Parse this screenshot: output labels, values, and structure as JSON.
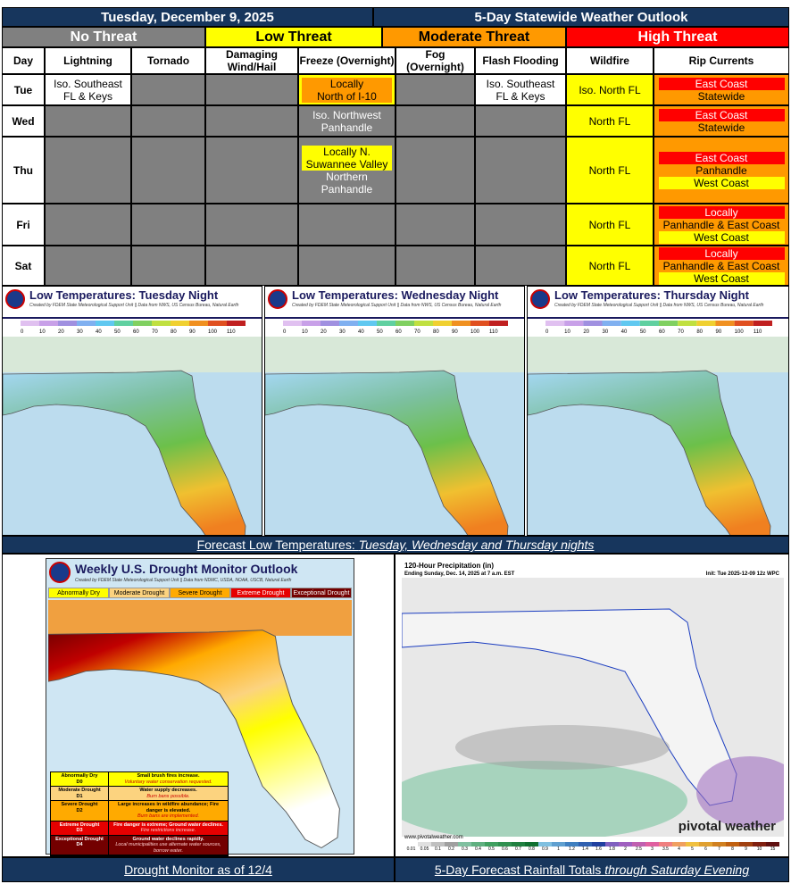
{
  "header": {
    "date": "Tuesday, December 9, 2025",
    "title": "5-Day Statewide Weather Outlook"
  },
  "legend": [
    {
      "text": "No Threat",
      "color": "#808080"
    },
    {
      "text": "Low Threat",
      "color": "#ffff00"
    },
    {
      "text": "Moderate Threat",
      "color": "#ff9900"
    },
    {
      "text": "High Threat",
      "color": "#ff0000"
    }
  ],
  "table": {
    "columns": [
      "Day",
      "Lightning",
      "Tornado",
      "Damaging Wind/Hail",
      "Freeze (Overnight)",
      "Fog (Overnight)",
      "Flash Flooding",
      "Wildfire",
      "Rip Currents"
    ],
    "rows": [
      {
        "day": "Tue",
        "cells": [
          {
            "bg": "#ffffff",
            "lines": [
              {
                "text": "Iso. Southeast FL & Keys"
              }
            ]
          },
          {
            "bg": "#808080",
            "lines": []
          },
          {
            "bg": "#808080",
            "lines": []
          },
          {
            "bg": "#ffff00",
            "lines": [
              {
                "text": "Locally",
                "color": "#ff9900"
              },
              {
                "text": "North of I-10",
                "color": "#ff9900"
              }
            ]
          },
          {
            "bg": "#808080",
            "lines": []
          },
          {
            "bg": "#ffffff",
            "lines": [
              {
                "text": "Iso. Southeast FL & Keys"
              }
            ]
          },
          {
            "bg": "#ffff00",
            "lines": [
              {
                "text": "Iso. North FL"
              }
            ]
          },
          {
            "bg": "#ff9900",
            "lines": [
              {
                "text": "East Coast",
                "color": "#ff0000"
              },
              {
                "text": "Statewide"
              }
            ]
          }
        ]
      },
      {
        "day": "Wed",
        "cells": [
          {
            "bg": "#808080",
            "lines": []
          },
          {
            "bg": "#808080",
            "lines": []
          },
          {
            "bg": "#808080",
            "lines": []
          },
          {
            "bg": "#808080",
            "lines": [
              {
                "text": "Iso. Northwest Panhandle"
              }
            ]
          },
          {
            "bg": "#808080",
            "lines": []
          },
          {
            "bg": "#808080",
            "lines": []
          },
          {
            "bg": "#ffff00",
            "lines": [
              {
                "text": "North FL"
              }
            ]
          },
          {
            "bg": "#ff9900",
            "lines": [
              {
                "text": "East Coast",
                "color": "#ff0000"
              },
              {
                "text": "Statewide"
              }
            ]
          }
        ]
      },
      {
        "day": "Thu",
        "cells": [
          {
            "bg": "#808080",
            "lines": []
          },
          {
            "bg": "#808080",
            "lines": []
          },
          {
            "bg": "#808080",
            "lines": []
          },
          {
            "bg": "#808080",
            "lines": [
              {
                "text": "Locally N. Suwannee Valley",
                "color": "#ffff00"
              },
              {
                "text": "Northern Panhandle"
              }
            ]
          },
          {
            "bg": "#808080",
            "lines": []
          },
          {
            "bg": "#808080",
            "lines": []
          },
          {
            "bg": "#ffff00",
            "lines": [
              {
                "text": "North FL"
              }
            ]
          },
          {
            "bg": "#ff9900",
            "lines": [
              {
                "text": "East Coast",
                "color": "#ff0000"
              },
              {
                "text": "Panhandle"
              },
              {
                "text": "West Coast",
                "color": "#ffff00"
              }
            ]
          }
        ]
      },
      {
        "day": "Fri",
        "cells": [
          {
            "bg": "#808080",
            "lines": []
          },
          {
            "bg": "#808080",
            "lines": []
          },
          {
            "bg": "#808080",
            "lines": []
          },
          {
            "bg": "#808080",
            "lines": []
          },
          {
            "bg": "#808080",
            "lines": []
          },
          {
            "bg": "#808080",
            "lines": []
          },
          {
            "bg": "#ffff00",
            "lines": [
              {
                "text": "North FL"
              }
            ]
          },
          {
            "bg": "#ff9900",
            "lines": [
              {
                "text": "Locally",
                "color": "#ff0000"
              },
              {
                "text": "Panhandle & East Coast"
              },
              {
                "text": "West Coast",
                "color": "#ffff00"
              }
            ]
          }
        ]
      },
      {
        "day": "Sat",
        "cells": [
          {
            "bg": "#808080",
            "lines": []
          },
          {
            "bg": "#808080",
            "lines": []
          },
          {
            "bg": "#808080",
            "lines": []
          },
          {
            "bg": "#808080",
            "lines": []
          },
          {
            "bg": "#808080",
            "lines": []
          },
          {
            "bg": "#808080",
            "lines": []
          },
          {
            "bg": "#ffff00",
            "lines": [
              {
                "text": "North FL"
              }
            ]
          },
          {
            "bg": "#ff9900",
            "lines": [
              {
                "text": "Locally",
                "color": "#ff0000"
              },
              {
                "text": "Panhandle & East Coast"
              },
              {
                "text": "West Coast",
                "color": "#ffff00"
              }
            ]
          }
        ]
      }
    ]
  },
  "temperature_maps": {
    "panels": [
      {
        "title": "Low Temperatures: Tuesday Night",
        "credit": "Created by FDEM State Meteorological Support Unit || Data from NWS, US Census Bureau, Natural Earth"
      },
      {
        "title": "Low Temperatures: Wednesday Night",
        "credit": "Created by FDEM State Meteorological Support Unit || Data from NWS, US Census Bureau, Natural Earth"
      },
      {
        "title": "Low Temperatures: Thursday Night",
        "credit": "Created by FDEM State Meteorological Support Unit || Data from NWS, US Census Bureau, Natural Earth"
      }
    ],
    "scale": [
      "0",
      "10",
      "20",
      "30",
      "40",
      "50",
      "60",
      "70",
      "80",
      "90",
      "100",
      "110"
    ],
    "caption": {
      "text": "Forecast Low Temperatures: ",
      "italic": "Tuesday, Wednesday and Thursday nights"
    }
  },
  "drought": {
    "title": "Weekly U.S. Drought Monitor Outlook",
    "credit": "Created by FDEM State Meteorological Support Unit || Data from NDMC, USDA, NOAA, USCB, Natural Earth",
    "legend": [
      {
        "text": "Abnormally Dry",
        "color": "#ffff00"
      },
      {
        "text": "Moderate Drought",
        "color": "#fcd37f"
      },
      {
        "text": "Severe Drought",
        "color": "#ffaa00"
      },
      {
        "text": "Extreme Drought",
        "color": "#e60000"
      },
      {
        "text": "Exceptional Drought",
        "color": "#730000"
      }
    ],
    "impacts": [
      {
        "category": "Abnormally Dry",
        "code": "D0",
        "description": "Small brush fires increase.",
        "note": "Voluntary water conservation requested."
      },
      {
        "category": "Moderate Drought",
        "code": "D1",
        "description": "Water supply decreases.",
        "note": "Burn bans possible."
      },
      {
        "category": "Severe Drought",
        "code": "D2",
        "description": "Large increases in wildfire abundance; Fire danger is elevated.",
        "note": "Burn bans are implemented."
      },
      {
        "category": "Extreme Drought",
        "code": "D3",
        "description": "Fire danger is extreme; Ground water declines.",
        "note": "Fire restrictions increase."
      },
      {
        "category": "Exceptional Drought",
        "code": "D4",
        "description": "Ground water declines rapidly.",
        "note": "Local municipalities use alternate water sources, borrow water."
      }
    ],
    "caption": "Drought Monitor as of 12/4"
  },
  "rainfall": {
    "title": "120-Hour Precipitation (in)",
    "subtitle": "Ending Sunday, Dec. 14, 2025 at 7 a.m. EST",
    "init": "Init: Tue 2025-12-09 12z WPC",
    "brand": "pivotal weather",
    "url": "www.pivotalweather.com",
    "scale": [
      "0.01",
      "0.05",
      "0.1",
      "0.2",
      "0.3",
      "0.4",
      "0.5",
      "0.6",
      "0.7",
      "0.8",
      "0.9",
      "1",
      "1.2",
      "1.4",
      "1.6",
      "1.8",
      "2",
      "2.5",
      "3",
      "3.5",
      "4",
      "5",
      "6",
      "7",
      "8",
      "9",
      "10",
      "15"
    ],
    "caption": {
      "text": "5-Day Forecast Rainfall Totals ",
      "italic": "through Saturday Evening"
    }
  }
}
